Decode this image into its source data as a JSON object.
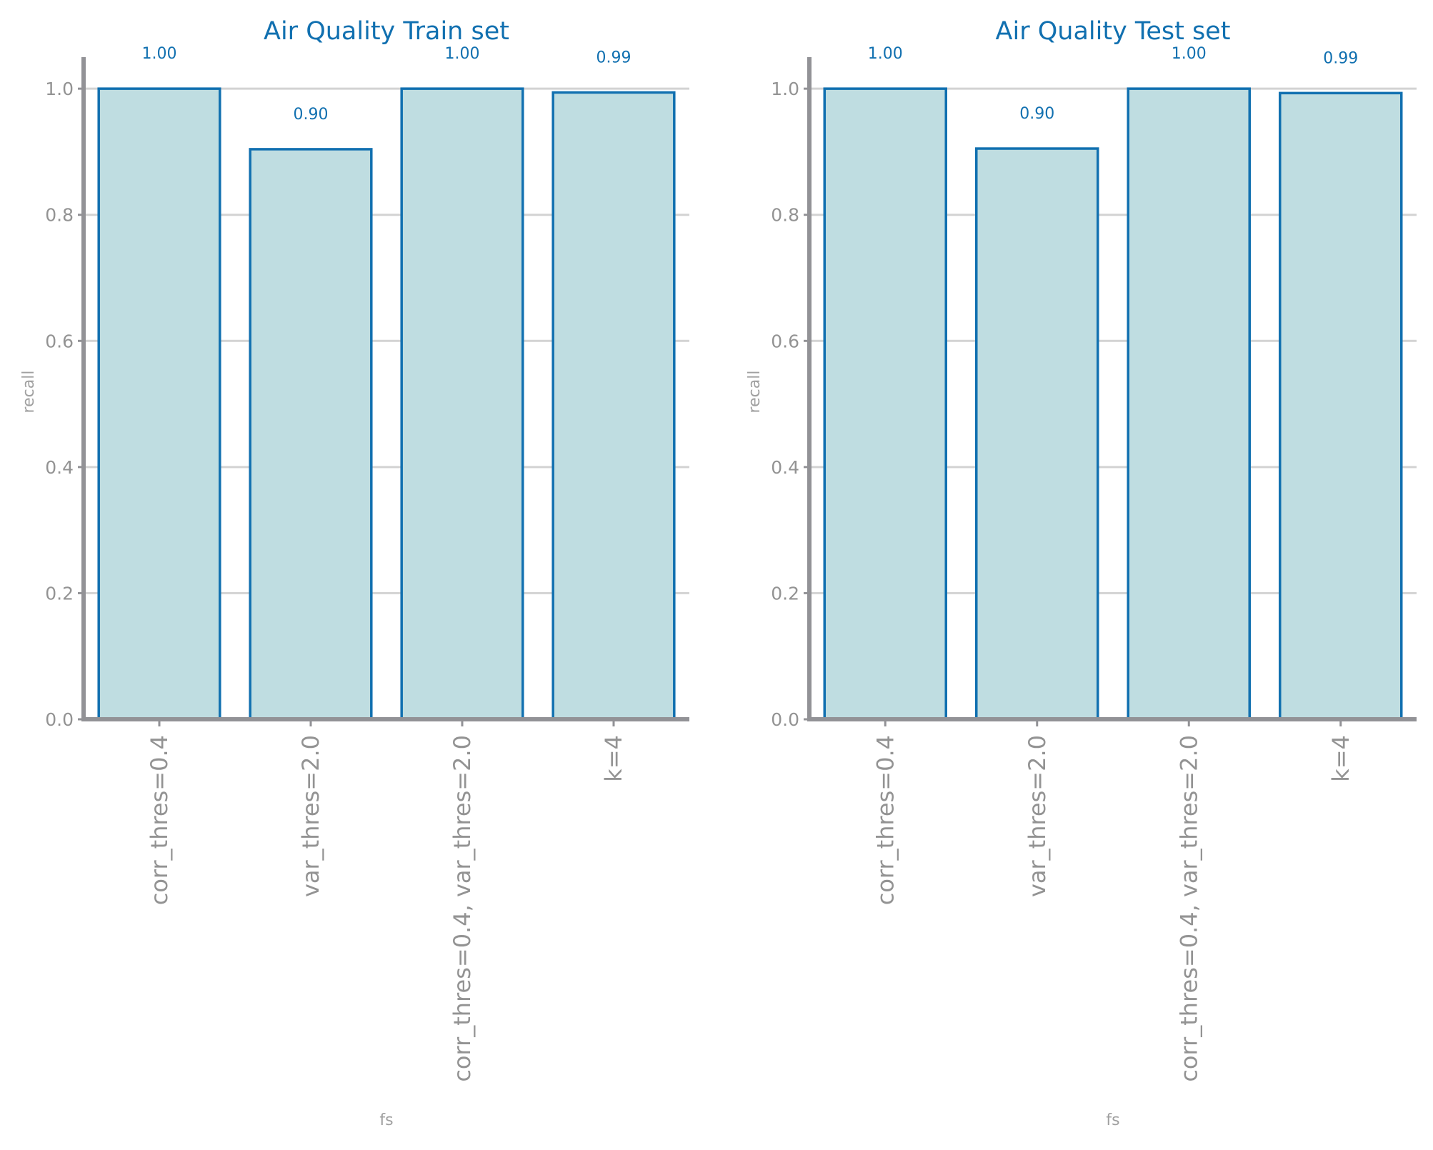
{
  "colors": {
    "title": "#1170b0",
    "bar_fill": "#bfdde1",
    "bar_edge": "#1170b0",
    "value_label": "#1170b0",
    "axis_line": "#929296",
    "grid": "#d3d3d3",
    "tick_label": "#939393",
    "axis_label": "#a0a0a0"
  },
  "chart_data": [
    {
      "type": "bar",
      "title": "Air Quality Train set",
      "xlabel": "fs",
      "ylabel": "recall",
      "categories": [
        "corr_thres=0.4",
        "var_thres=2.0",
        "corr_thres=0.4, var_thres=2.0",
        "k=4"
      ],
      "values": [
        1.0,
        0.904,
        1.0,
        0.994
      ],
      "value_labels": [
        "1.00",
        "0.90",
        "1.00",
        "0.99"
      ],
      "ylim": [
        0,
        1.05
      ],
      "yticks": [
        "0.0",
        "0.2",
        "0.4",
        "0.6",
        "0.8",
        "1.0"
      ],
      "grid": "horizontal"
    },
    {
      "type": "bar",
      "title": "Air Quality Test set",
      "xlabel": "fs",
      "ylabel": "recall",
      "categories": [
        "corr_thres=0.4",
        "var_thres=2.0",
        "corr_thres=0.4, var_thres=2.0",
        "k=4"
      ],
      "values": [
        1.0,
        0.905,
        1.0,
        0.993
      ],
      "value_labels": [
        "1.00",
        "0.90",
        "1.00",
        "0.99"
      ],
      "ylim": [
        0,
        1.05
      ],
      "yticks": [
        "0.0",
        "0.2",
        "0.4",
        "0.6",
        "0.8",
        "1.0"
      ],
      "grid": "horizontal"
    }
  ]
}
